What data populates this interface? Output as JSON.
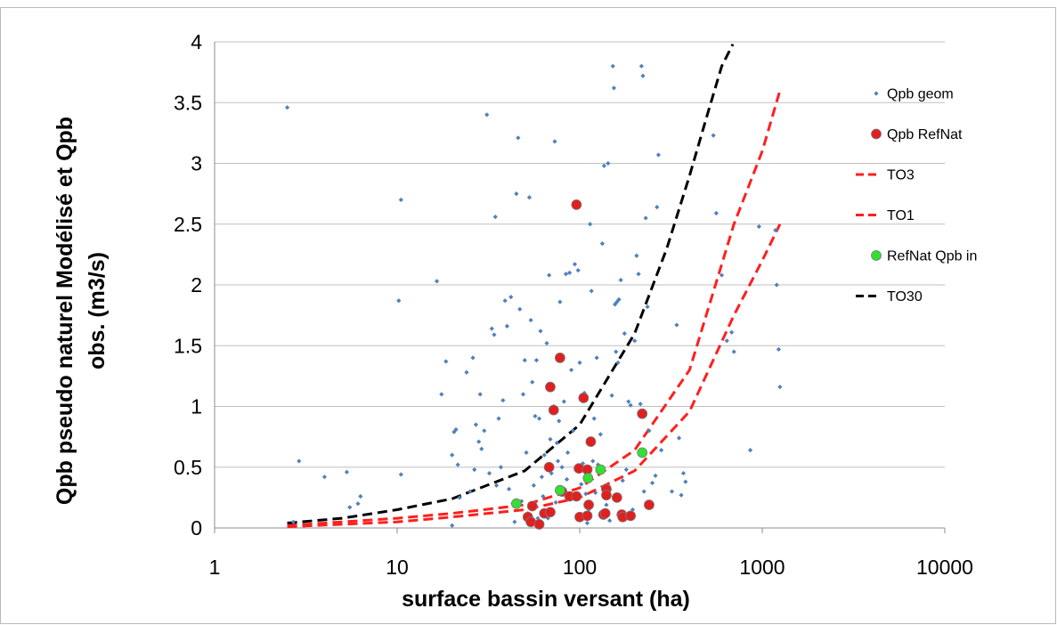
{
  "chart_data": {
    "type": "scatter",
    "xlabel": "surface bassin versant (ha)",
    "ylabel_lines": [
      "Qpb pseudo naturel Modélisé et Qpb",
      "obs. (m3/s)"
    ],
    "x_scale": "log",
    "xlim": [
      1,
      10000
    ],
    "ylim": [
      0,
      4
    ],
    "x_ticks": [
      1,
      10,
      100,
      1000,
      10000
    ],
    "x_tick_labels": [
      "1",
      "10",
      "100",
      "1000",
      "10000"
    ],
    "y_ticks": [
      0,
      0.5,
      1,
      1.5,
      2,
      2.5,
      3,
      3.5,
      4
    ],
    "y_tick_labels": [
      "0",
      "0.5",
      "1",
      "1.5",
      "2",
      "2.5",
      "3",
      "3.5",
      "4"
    ],
    "grid": "horizontal",
    "legend_position": "right",
    "series": [
      {
        "name": "Qpb geom",
        "kind": "scatter",
        "marker": "diamond",
        "color": "#4f81bd",
        "points": [
          [
            2.5,
            3.46
          ],
          [
            2.7,
            0.05
          ],
          [
            2.9,
            0.55
          ],
          [
            4.0,
            0.42
          ],
          [
            5.3,
            0.46
          ],
          [
            5.5,
            0.17
          ],
          [
            6.1,
            0.2
          ],
          [
            6.3,
            0.26
          ],
          [
            10.2,
            1.87
          ],
          [
            10.5,
            2.7
          ],
          [
            10.5,
            0.44
          ],
          [
            16.5,
            2.03
          ],
          [
            17.5,
            1.1
          ],
          [
            18.5,
            1.37
          ],
          [
            20.0,
            0.6
          ],
          [
            20.5,
            0.79
          ],
          [
            21.0,
            0.81
          ],
          [
            20.0,
            0.02
          ],
          [
            21.5,
            0.52
          ],
          [
            22.0,
            0.25
          ],
          [
            24.0,
            1.28
          ],
          [
            25.0,
            0.3
          ],
          [
            26.0,
            1.4
          ],
          [
            26.5,
            0.48
          ],
          [
            27.0,
            0.85
          ],
          [
            28.0,
            0.71
          ],
          [
            28.5,
            1.1
          ],
          [
            29.0,
            0.65
          ],
          [
            30.0,
            0.8
          ],
          [
            31.0,
            3.4
          ],
          [
            32.0,
            0.45
          ],
          [
            33.0,
            1.64
          ],
          [
            34.0,
            1.59
          ],
          [
            34.5,
            2.56
          ],
          [
            35.0,
            0.35
          ],
          [
            36.0,
            0.9
          ],
          [
            37.0,
            0.5
          ],
          [
            38.0,
            1.05
          ],
          [
            39.0,
            1.87
          ],
          [
            40.0,
            1.66
          ],
          [
            41.0,
            0.32
          ],
          [
            42.0,
            1.9
          ],
          [
            43.0,
            0.2
          ],
          [
            44.0,
            0.05
          ],
          [
            45.0,
            2.75
          ],
          [
            46.0,
            3.21
          ],
          [
            47.0,
            1.8
          ],
          [
            48.0,
            0.22
          ],
          [
            49.0,
            1.1
          ],
          [
            50.0,
            1.38
          ],
          [
            51.0,
            0.62
          ],
          [
            52.0,
            0.12
          ],
          [
            53.0,
            2.72
          ],
          [
            54.0,
            1.71
          ],
          [
            55.0,
            1.2
          ],
          [
            56.0,
            0.35
          ],
          [
            57.0,
            0.92
          ],
          [
            58.0,
            1.38
          ],
          [
            59.0,
            0.08
          ],
          [
            60.0,
            0.9
          ],
          [
            61.0,
            1.62
          ],
          [
            62.0,
            0.42
          ],
          [
            63.0,
            0.26
          ],
          [
            64.0,
            0.6
          ],
          [
            66.0,
            1.52
          ],
          [
            67.0,
            0.08
          ],
          [
            68.0,
            2.08
          ],
          [
            69.0,
            0.73
          ],
          [
            70.0,
            0.45
          ],
          [
            72.0,
            1.0
          ],
          [
            73.0,
            3.18
          ],
          [
            74.0,
            0.21
          ],
          [
            75.0,
            0.7
          ],
          [
            76.0,
            0.55
          ],
          [
            77.0,
            0.88
          ],
          [
            78.0,
            1.86
          ],
          [
            80.0,
            0.5
          ],
          [
            82.0,
            1.04
          ],
          [
            84.0,
            2.09
          ],
          [
            85.0,
            0.4
          ],
          [
            86.0,
            0.62
          ],
          [
            88.0,
            2.1
          ],
          [
            90.0,
            1.3
          ],
          [
            92.0,
            0.8
          ],
          [
            94.0,
            2.17
          ],
          [
            96.0,
            0.25
          ],
          [
            98.0,
            2.12
          ],
          [
            100.0,
            1.36
          ],
          [
            102.0,
            0.36
          ],
          [
            104.0,
            0.53
          ],
          [
            106.0,
            1.11
          ],
          [
            108.0,
            0.28
          ],
          [
            110.0,
            0.04
          ],
          [
            112.0,
            0.15
          ],
          [
            114.0,
            2.5
          ],
          [
            116.0,
            1.95
          ],
          [
            118.0,
            0.55
          ],
          [
            120.0,
            0.9
          ],
          [
            122.0,
            0.29
          ],
          [
            124.0,
            1.4
          ],
          [
            126.0,
            0.52
          ],
          [
            130.0,
            0.77
          ],
          [
            133.0,
            2.34
          ],
          [
            136.0,
            2.98
          ],
          [
            140.0,
            0.19
          ],
          [
            143.0,
            3.0
          ],
          [
            146.0,
            0.06
          ],
          [
            150.0,
            1.09
          ],
          [
            152.0,
            3.8
          ],
          [
            154.0,
            3.62
          ],
          [
            156.0,
            1.84
          ],
          [
            158.0,
            1.45
          ],
          [
            160.0,
            1.86
          ],
          [
            162.0,
            1.36
          ],
          [
            164.0,
            1.88
          ],
          [
            168.0,
            2.04
          ],
          [
            172.0,
            0.39
          ],
          [
            176.0,
            1.6
          ],
          [
            180.0,
            0.48
          ],
          [
            185.0,
            1.04
          ],
          [
            190.0,
            1.01
          ],
          [
            195.0,
            0.15
          ],
          [
            200.0,
            1.54
          ],
          [
            205.0,
            2.24
          ],
          [
            210.0,
            2.09
          ],
          [
            215.0,
            1.02
          ],
          [
            218.0,
            3.8
          ],
          [
            222.0,
            3.72
          ],
          [
            225.0,
            0.3
          ],
          [
            230.0,
            2.55
          ],
          [
            235.0,
            1.82
          ],
          [
            240.0,
            0.8
          ],
          [
            250.0,
            0.37
          ],
          [
            260.0,
            0.43
          ],
          [
            265.0,
            2.64
          ],
          [
            270.0,
            3.07
          ],
          [
            280.0,
            0.64
          ],
          [
            320.0,
            0.3
          ],
          [
            340.0,
            1.67
          ],
          [
            350.0,
            0.74
          ],
          [
            360.0,
            0.27
          ],
          [
            370.0,
            0.45
          ],
          [
            380.0,
            0.38
          ],
          [
            540.0,
            3.23
          ],
          [
            560.0,
            2.59
          ],
          [
            600.0,
            2.08
          ],
          [
            640.0,
            1.54
          ],
          [
            680.0,
            1.61
          ],
          [
            700.0,
            1.45
          ],
          [
            860.0,
            0.64
          ],
          [
            960.0,
            2.48
          ],
          [
            1180.0,
            2.45
          ],
          [
            1200.0,
            2.0
          ],
          [
            1230.0,
            1.47
          ],
          [
            1250.0,
            1.16
          ]
        ]
      },
      {
        "name": "Qpb RefNat",
        "kind": "scatter",
        "marker": "circle",
        "color": "#e02020",
        "points": [
          [
            68,
            0.5
          ],
          [
            69,
            1.16
          ],
          [
            72,
            0.97
          ],
          [
            78,
            1.4
          ],
          [
            96,
            2.66
          ],
          [
            105,
            1.07
          ],
          [
            115,
            0.71
          ],
          [
            99,
            0.49
          ],
          [
            110,
            0.48
          ],
          [
            220,
            0.94
          ],
          [
            52,
            0.09
          ],
          [
            54,
            0.05
          ],
          [
            55,
            0.18
          ],
          [
            60,
            0.03
          ],
          [
            64,
            0.12
          ],
          [
            69,
            0.13
          ],
          [
            80,
            0.3
          ],
          [
            88,
            0.26
          ],
          [
            96,
            0.26
          ],
          [
            100,
            0.09
          ],
          [
            110,
            0.1
          ],
          [
            112,
            0.19
          ],
          [
            140,
            0.32
          ],
          [
            140,
            0.27
          ],
          [
            135,
            0.11
          ],
          [
            138,
            0.12
          ],
          [
            160,
            0.25
          ],
          [
            170,
            0.11
          ],
          [
            172,
            0.09
          ],
          [
            190,
            0.1
          ],
          [
            240,
            0.19
          ]
        ]
      },
      {
        "name": "RefNat Qpb in",
        "kind": "scatter",
        "marker": "circle",
        "color": "#33e033",
        "points": [
          [
            45,
            0.2
          ],
          [
            78,
            0.31
          ],
          [
            111,
            0.41
          ],
          [
            130,
            0.48
          ],
          [
            220,
            0.62
          ]
        ]
      },
      {
        "name": "TO3",
        "kind": "line",
        "dash": true,
        "color": "#ff1f1f",
        "x": [
          2.5,
          5,
          10,
          20,
          50,
          100,
          200,
          400,
          700,
          1000,
          1250
        ],
        "y": [
          0.02,
          0.05,
          0.08,
          0.12,
          0.19,
          0.33,
          0.64,
          1.3,
          2.5,
          3.1,
          3.6
        ]
      },
      {
        "name": "TO1",
        "kind": "line",
        "dash": true,
        "color": "#ff1f1f",
        "x": [
          2.5,
          5,
          10,
          20,
          50,
          100,
          200,
          400,
          700,
          1000,
          1250
        ],
        "y": [
          0.01,
          0.03,
          0.05,
          0.09,
          0.15,
          0.25,
          0.47,
          0.96,
          1.75,
          2.2,
          2.5
        ]
      },
      {
        "name": "TO30",
        "kind": "line",
        "dash": true,
        "color": "#000000",
        "x": [
          2.5,
          5,
          10,
          20,
          50,
          100,
          200,
          300,
          400,
          500,
          600,
          690
        ],
        "y": [
          0.04,
          0.08,
          0.15,
          0.24,
          0.47,
          0.85,
          1.6,
          2.3,
          2.9,
          3.4,
          3.8,
          3.98
        ]
      }
    ]
  }
}
